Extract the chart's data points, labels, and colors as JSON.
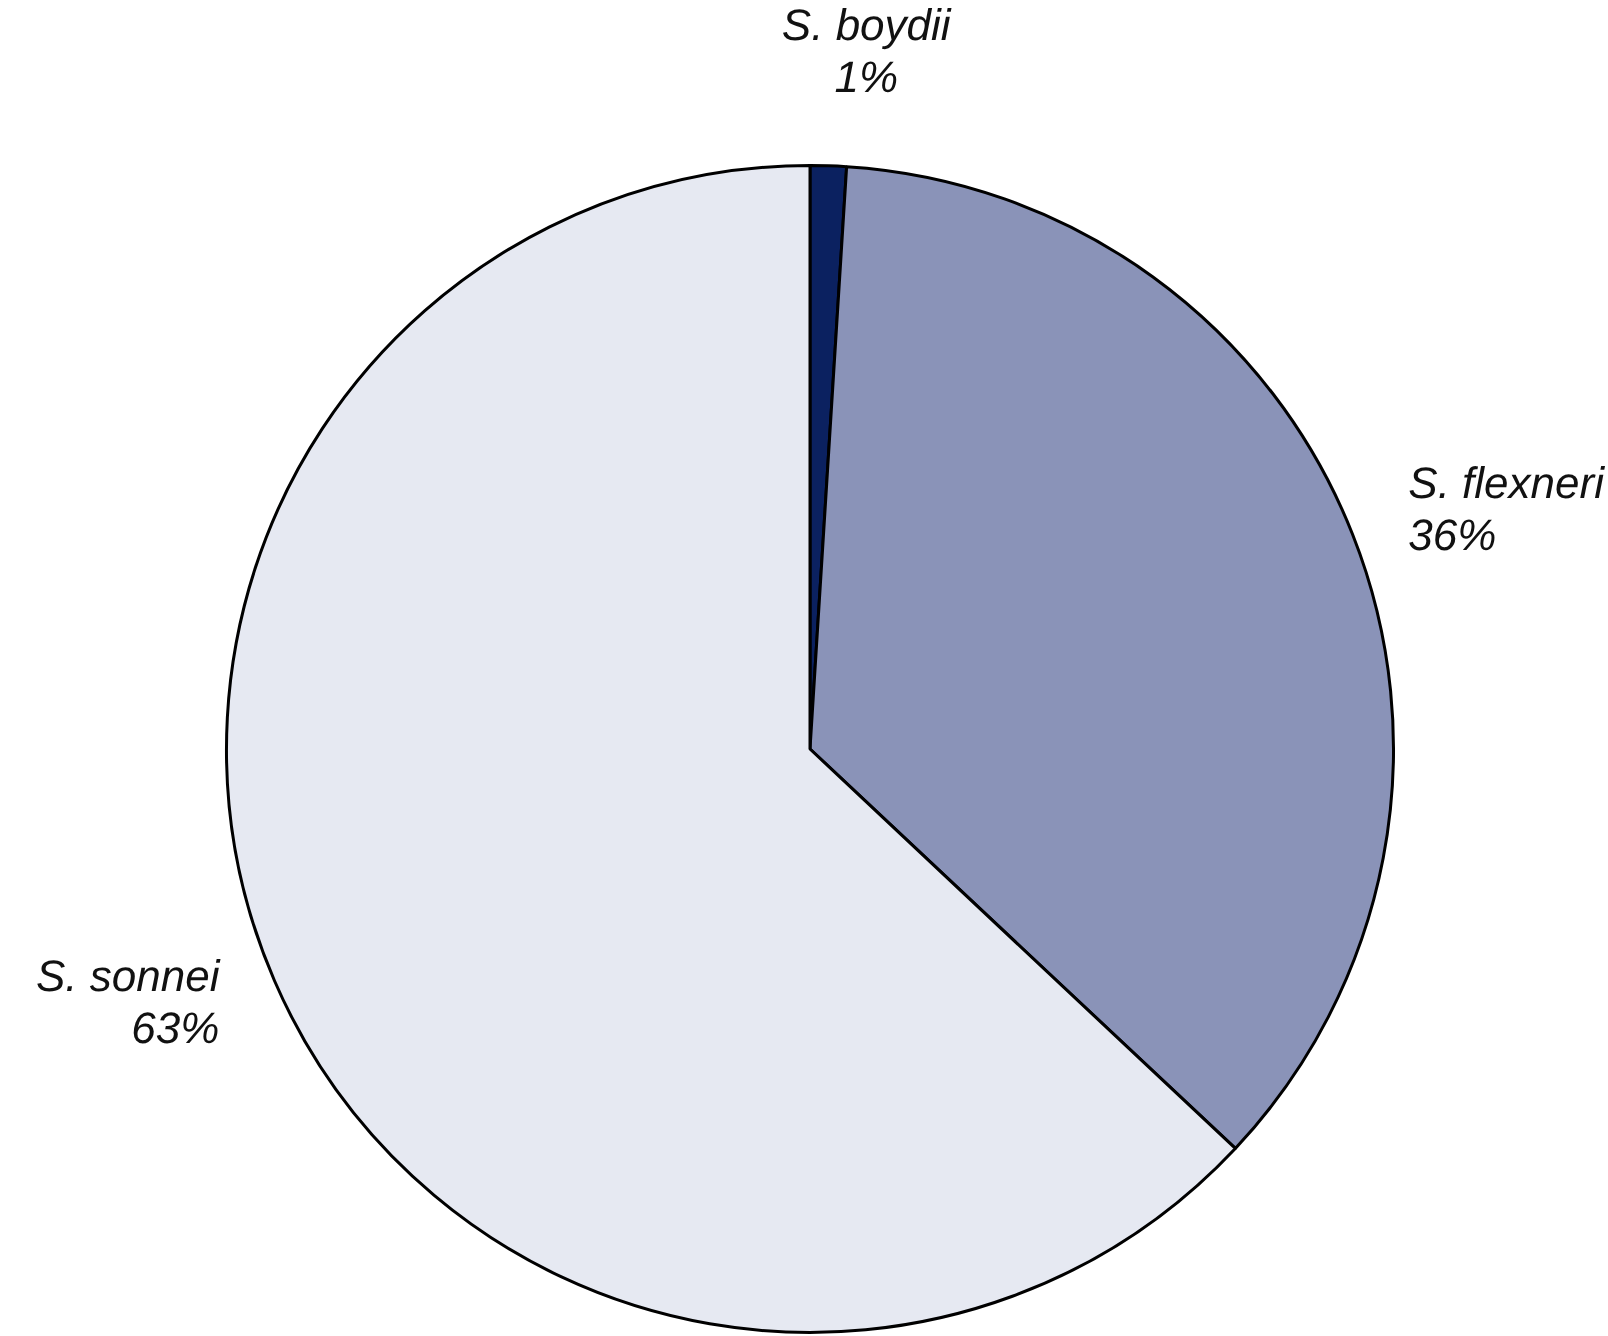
{
  "chart_data": {
    "type": "pie",
    "categories": [
      "S. boydii",
      "S. flexneri",
      "S. sonnei"
    ],
    "values": [
      1,
      36,
      63
    ],
    "value_labels": [
      "1%",
      "36%",
      "63%"
    ],
    "colors": [
      "#0b2160",
      "#8a93b8",
      "#e6e9f2"
    ],
    "legend": false
  }
}
